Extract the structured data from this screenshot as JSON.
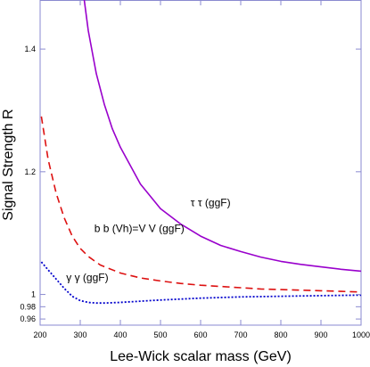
{
  "chart_data": {
    "type": "line",
    "title": "",
    "xlabel": "Lee-Wick scalar mass (GeV)",
    "ylabel": "Signal Strength R",
    "xlim": [
      200,
      1000
    ],
    "ylim": [
      0.95,
      1.48
    ],
    "x_ticks": [
      200,
      300,
      400,
      500,
      600,
      700,
      800,
      900,
      1000
    ],
    "x_tick_labels": [
      "200",
      "300",
      "400",
      "500",
      "600",
      "700",
      "800",
      "900",
      "1000"
    ],
    "y_ticks": [
      0.96,
      0.98,
      1.0,
      1.2,
      1.4
    ],
    "y_tick_labels": [
      "0.96",
      "0.98",
      "1",
      "1.2",
      "1.4"
    ],
    "grid": false,
    "legend": "none",
    "frame_color": "#8a8ad0",
    "series": [
      {
        "name": "τ τ  (ggF)",
        "color": "#9900cc",
        "dash": "solid",
        "x": [
          310,
          320,
          340,
          360,
          380,
          400,
          450,
          500,
          550,
          600,
          650,
          700,
          750,
          800,
          850,
          900,
          950,
          1000
        ],
        "y": [
          1.48,
          1.43,
          1.36,
          1.31,
          1.27,
          1.24,
          1.18,
          1.14,
          1.115,
          1.095,
          1.08,
          1.07,
          1.061,
          1.054,
          1.049,
          1.045,
          1.041,
          1.038
        ]
      },
      {
        "name": "b b (Vh)=V V (ggF)",
        "color": "#dd1111",
        "dash": "dashed",
        "x": [
          203,
          220,
          240,
          260,
          280,
          300,
          320,
          350,
          400,
          450,
          500,
          550,
          600,
          650,
          700,
          750,
          800,
          850,
          900,
          950,
          1000
        ],
        "y": [
          1.29,
          1.22,
          1.165,
          1.125,
          1.095,
          1.075,
          1.062,
          1.048,
          1.035,
          1.027,
          1.022,
          1.018,
          1.015,
          1.013,
          1.011,
          1.009,
          1.008,
          1.007,
          1.006,
          1.005,
          1.004
        ]
      },
      {
        "name": "γ γ  (ggF)",
        "color": "#0000cc",
        "dash": "dotted",
        "x": [
          203,
          220,
          240,
          260,
          280,
          300,
          320,
          340,
          360,
          400,
          450,
          500,
          600,
          700,
          800,
          900,
          1000
        ],
        "y": [
          1.053,
          1.04,
          1.025,
          1.01,
          0.997,
          0.99,
          0.987,
          0.986,
          0.986,
          0.987,
          0.989,
          0.991,
          0.994,
          0.996,
          0.997,
          0.998,
          0.999
        ]
      }
    ],
    "annotations": [
      {
        "text": "τ τ  (ggF)",
        "x": 575,
        "y": 1.144
      },
      {
        "text": "b b (Vh)=V V (ggF)",
        "x": 335,
        "y": 1.102
      },
      {
        "text": "γ γ  (ggF)",
        "x": 265,
        "y": 1.022
      }
    ]
  }
}
